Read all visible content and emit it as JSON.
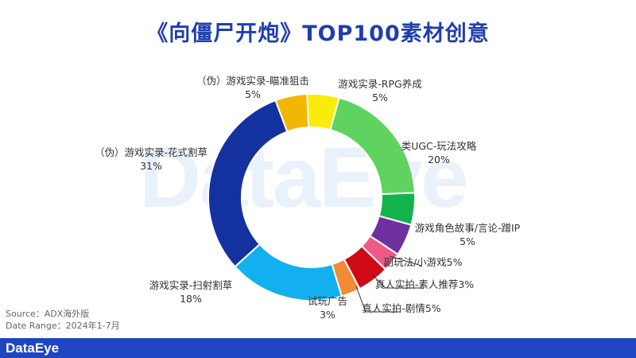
{
  "title": "《向僵尸开炮》TOP100素材创意",
  "watermark": "DataEye",
  "source": {
    "source_line": "Source：ADX海外版",
    "date_line": "Date Range：2024年1-7月"
  },
  "footer": {
    "logo": "DataEye"
  },
  "chart_data": {
    "type": "pie",
    "donut": true,
    "slices": [
      {
        "label": "（伪）游戏实录-瞄准狙击",
        "pct_label": "5%",
        "value": 5,
        "color": "#f2b705"
      },
      {
        "label": "游戏实录-RPG养成",
        "pct_label": "5%",
        "value": 5,
        "color": "#f9ec0a"
      },
      {
        "label": "类UGC-玩法攻略",
        "pct_label": "20%",
        "value": 20,
        "color": "#5fd25f"
      },
      {
        "label": "游戏角色故事/言论-蹭IP",
        "pct_label": "5%",
        "value": 5,
        "color": "#12b34a"
      },
      {
        "label": "副玩法/小游戏5%",
        "pct_label": "",
        "value": 5,
        "color": "#7030a0"
      },
      {
        "label": "真人实拍-素人推荐3%",
        "pct_label": "",
        "value": 3,
        "color": "#ee5a87"
      },
      {
        "label": "真人实拍-剧情5%",
        "pct_label": "",
        "value": 5,
        "color": "#d00a14"
      },
      {
        "label": "试玩广告",
        "pct_label": "3%",
        "value": 3,
        "color": "#f28a36"
      },
      {
        "label": "游戏实录-扫射割草",
        "pct_label": "18%",
        "value": 18,
        "color": "#13b0ef"
      },
      {
        "label": "（伪）游戏实录-花式割草",
        "pct_label": "31%",
        "value": 31,
        "color": "#13329f"
      }
    ]
  }
}
